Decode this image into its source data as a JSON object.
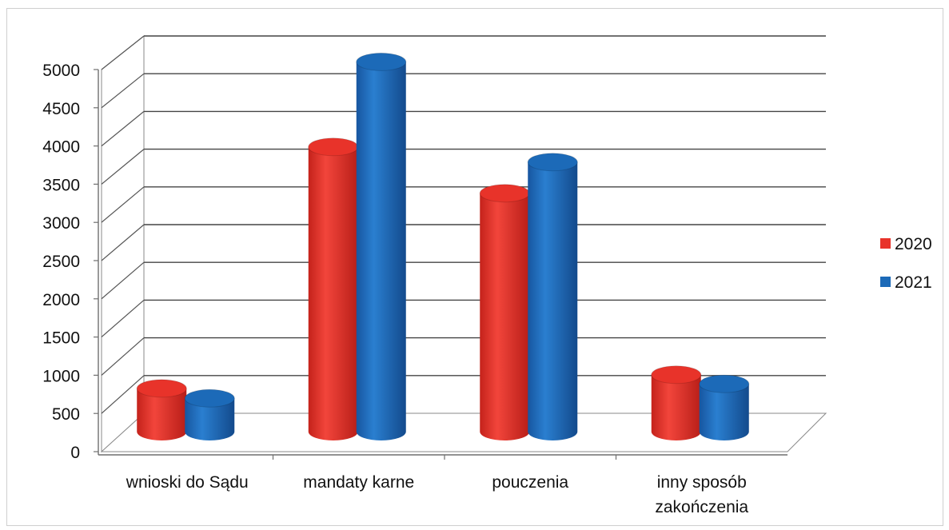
{
  "chart_data": {
    "type": "bar",
    "variant": "3d-cylinder",
    "title": "",
    "xlabel": "",
    "ylabel": "",
    "categories": [
      "wnioski do Sądu",
      "mandaty karne",
      "pouczenia",
      "inny sposób zakończenia"
    ],
    "series": [
      {
        "name": "2020",
        "values": [
          580,
          3760,
          3150,
          760
        ],
        "color": "#e8332a"
      },
      {
        "name": "2021",
        "values": [
          450,
          4880,
          3560,
          640
        ],
        "color": "#1c6ab8"
      }
    ],
    "ylim": [
      0,
      5000
    ],
    "yticks": [
      "0",
      "500",
      "1000",
      "1500",
      "2000",
      "2500",
      "3000",
      "3500",
      "4000",
      "4500",
      "5000"
    ],
    "grid": true,
    "legend_position": "right"
  }
}
